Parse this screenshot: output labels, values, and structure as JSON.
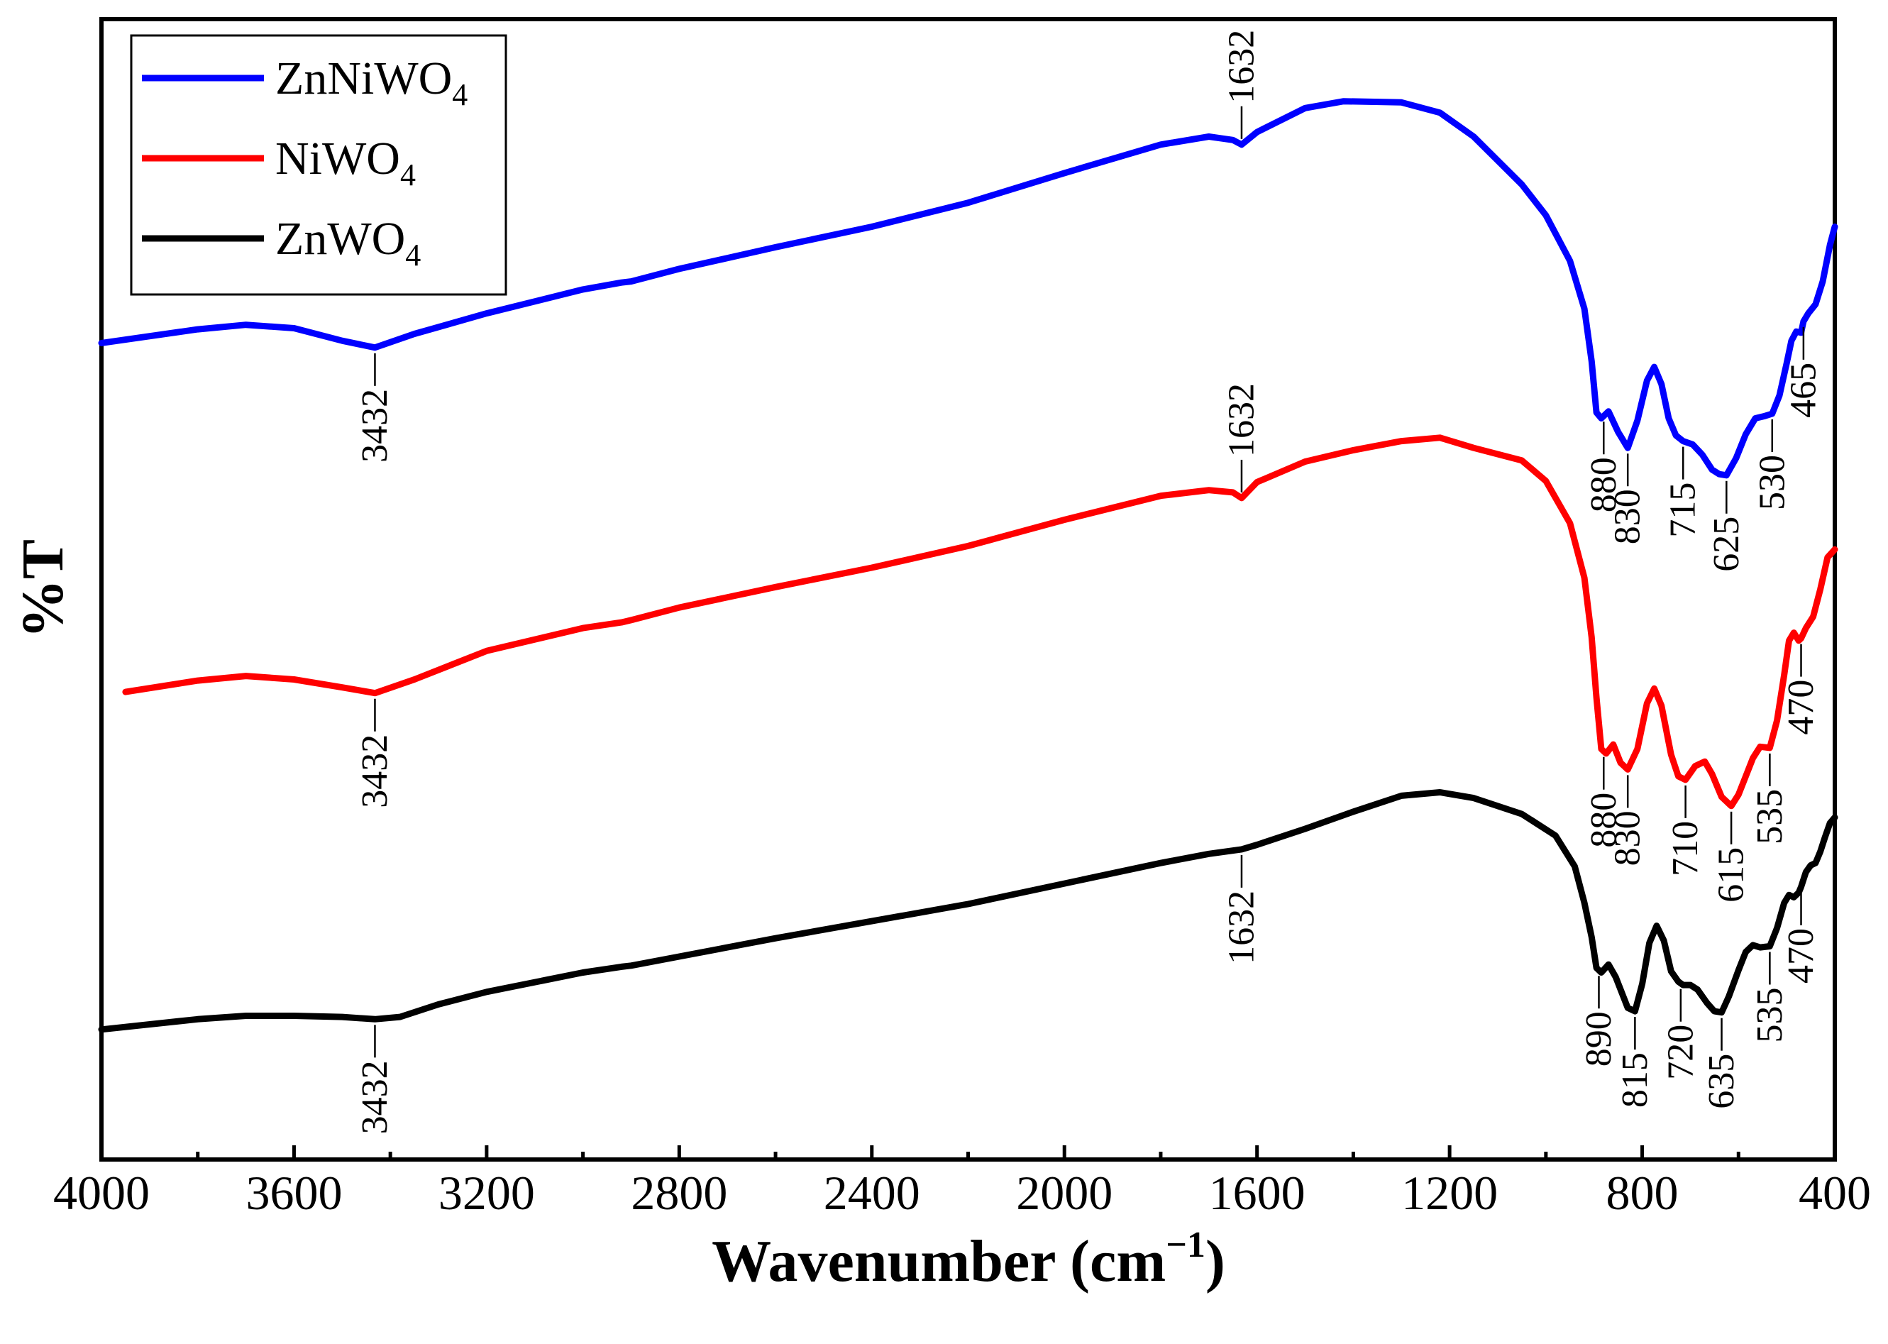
{
  "chart_data": {
    "type": "line",
    "title": "",
    "xlabel_main": "Wavenumber (cm",
    "xlabel_sup": "−1",
    "xlabel_close": ")",
    "ylabel": "%T",
    "xlim": [
      4000,
      400
    ],
    "x_reversed": true,
    "ylim": [
      0,
      100
    ],
    "x_ticks": [
      "4000",
      "3600",
      "3200",
      "2800",
      "2400",
      "2000",
      "1600",
      "1200",
      "800",
      "400"
    ],
    "x_tick_values": [
      4000,
      3600,
      3200,
      2800,
      2400,
      2000,
      1600,
      1200,
      800,
      400
    ],
    "y_ticks_shown": false,
    "legend_position": "top-left",
    "series": [
      {
        "name": "ZnNiWO",
        "sub": "4",
        "color": "#0000ff",
        "points": [
          [
            4000,
            71.6
          ],
          [
            3800,
            72.8
          ],
          [
            3700,
            73.2
          ],
          [
            3600,
            72.9
          ],
          [
            3500,
            71.8
          ],
          [
            3432,
            71.2
          ],
          [
            3350,
            72.4
          ],
          [
            3200,
            74.2
          ],
          [
            3000,
            76.3
          ],
          [
            2920,
            76.9
          ],
          [
            2900,
            77.0
          ],
          [
            2800,
            78.1
          ],
          [
            2600,
            80.0
          ],
          [
            2400,
            81.8
          ],
          [
            2200,
            83.9
          ],
          [
            2000,
            86.5
          ],
          [
            1800,
            89.0
          ],
          [
            1700,
            89.7
          ],
          [
            1650,
            89.4
          ],
          [
            1632,
            89.0
          ],
          [
            1600,
            90.1
          ],
          [
            1500,
            92.2
          ],
          [
            1420,
            92.8
          ],
          [
            1300,
            92.7
          ],
          [
            1220,
            91.8
          ],
          [
            1150,
            89.7
          ],
          [
            1100,
            87.6
          ],
          [
            1050,
            85.5
          ],
          [
            1000,
            82.8
          ],
          [
            950,
            78.8
          ],
          [
            920,
            74.6
          ],
          [
            905,
            70.0
          ],
          [
            895,
            65.5
          ],
          [
            885,
            65.0
          ],
          [
            870,
            65.6
          ],
          [
            850,
            63.8
          ],
          [
            830,
            62.4
          ],
          [
            810,
            64.8
          ],
          [
            790,
            68.3
          ],
          [
            775,
            69.5
          ],
          [
            760,
            68.0
          ],
          [
            745,
            65.0
          ],
          [
            730,
            63.5
          ],
          [
            715,
            63.0
          ],
          [
            695,
            62.7
          ],
          [
            675,
            61.8
          ],
          [
            655,
            60.5
          ],
          [
            640,
            60.1
          ],
          [
            625,
            60.0
          ],
          [
            605,
            61.5
          ],
          [
            585,
            63.6
          ],
          [
            565,
            65.0
          ],
          [
            545,
            65.2
          ],
          [
            530,
            65.4
          ],
          [
            515,
            67.0
          ],
          [
            500,
            69.8
          ],
          [
            490,
            71.8
          ],
          [
            480,
            72.6
          ],
          [
            470,
            72.5
          ],
          [
            465,
            73.5
          ],
          [
            455,
            74.2
          ],
          [
            440,
            75.0
          ],
          [
            425,
            77.0
          ],
          [
            410,
            80.2
          ],
          [
            400,
            81.8
          ]
        ]
      },
      {
        "name": "NiWO",
        "sub": "4",
        "color": "#ff0000",
        "points": [
          [
            3950,
            41.0
          ],
          [
            3800,
            42.0
          ],
          [
            3700,
            42.4
          ],
          [
            3600,
            42.1
          ],
          [
            3500,
            41.4
          ],
          [
            3432,
            40.9
          ],
          [
            3350,
            42.1
          ],
          [
            3200,
            44.6
          ],
          [
            3000,
            46.6
          ],
          [
            2920,
            47.1
          ],
          [
            2900,
            47.3
          ],
          [
            2800,
            48.4
          ],
          [
            2600,
            50.2
          ],
          [
            2400,
            51.9
          ],
          [
            2200,
            53.8
          ],
          [
            2000,
            56.1
          ],
          [
            1800,
            58.2
          ],
          [
            1700,
            58.7
          ],
          [
            1650,
            58.5
          ],
          [
            1632,
            58.0
          ],
          [
            1600,
            59.4
          ],
          [
            1500,
            61.2
          ],
          [
            1400,
            62.2
          ],
          [
            1300,
            63.0
          ],
          [
            1220,
            63.3
          ],
          [
            1150,
            62.4
          ],
          [
            1050,
            61.3
          ],
          [
            1000,
            59.5
          ],
          [
            950,
            55.8
          ],
          [
            920,
            51.0
          ],
          [
            905,
            45.8
          ],
          [
            895,
            40.5
          ],
          [
            885,
            36.0
          ],
          [
            875,
            35.6
          ],
          [
            860,
            36.4
          ],
          [
            845,
            34.8
          ],
          [
            830,
            34.2
          ],
          [
            810,
            36.0
          ],
          [
            790,
            40.0
          ],
          [
            775,
            41.3
          ],
          [
            760,
            39.8
          ],
          [
            740,
            35.5
          ],
          [
            725,
            33.6
          ],
          [
            710,
            33.3
          ],
          [
            690,
            34.5
          ],
          [
            670,
            34.9
          ],
          [
            655,
            33.8
          ],
          [
            635,
            31.8
          ],
          [
            615,
            31.0
          ],
          [
            600,
            32.0
          ],
          [
            585,
            33.6
          ],
          [
            570,
            35.2
          ],
          [
            555,
            36.2
          ],
          [
            535,
            36.1
          ],
          [
            520,
            38.5
          ],
          [
            505,
            42.5
          ],
          [
            495,
            45.5
          ],
          [
            485,
            46.2
          ],
          [
            475,
            45.5
          ],
          [
            470,
            45.7
          ],
          [
            460,
            46.6
          ],
          [
            445,
            47.6
          ],
          [
            430,
            50.0
          ],
          [
            415,
            52.8
          ],
          [
            400,
            53.5
          ]
        ]
      },
      {
        "name": "ZnWO",
        "sub": "4",
        "color": "#000000",
        "points": [
          [
            4000,
            11.4
          ],
          [
            3800,
            12.3
          ],
          [
            3700,
            12.6
          ],
          [
            3600,
            12.6
          ],
          [
            3500,
            12.5
          ],
          [
            3432,
            12.3
          ],
          [
            3380,
            12.5
          ],
          [
            3300,
            13.6
          ],
          [
            3200,
            14.7
          ],
          [
            3000,
            16.4
          ],
          [
            2920,
            16.9
          ],
          [
            2900,
            17.0
          ],
          [
            2800,
            17.8
          ],
          [
            2600,
            19.4
          ],
          [
            2400,
            20.9
          ],
          [
            2200,
            22.4
          ],
          [
            2000,
            24.2
          ],
          [
            1800,
            26.0
          ],
          [
            1700,
            26.8
          ],
          [
            1632,
            27.2
          ],
          [
            1600,
            27.6
          ],
          [
            1500,
            29.0
          ],
          [
            1400,
            30.5
          ],
          [
            1300,
            31.9
          ],
          [
            1220,
            32.2
          ],
          [
            1150,
            31.7
          ],
          [
            1050,
            30.3
          ],
          [
            980,
            28.4
          ],
          [
            940,
            25.7
          ],
          [
            920,
            22.5
          ],
          [
            905,
            19.5
          ],
          [
            895,
            16.8
          ],
          [
            885,
            16.4
          ],
          [
            870,
            17.1
          ],
          [
            855,
            16.0
          ],
          [
            830,
            13.3
          ],
          [
            815,
            13.0
          ],
          [
            800,
            15.4
          ],
          [
            785,
            19.0
          ],
          [
            770,
            20.5
          ],
          [
            755,
            19.2
          ],
          [
            740,
            16.5
          ],
          [
            725,
            15.6
          ],
          [
            715,
            15.3
          ],
          [
            700,
            15.3
          ],
          [
            685,
            14.9
          ],
          [
            665,
            13.7
          ],
          [
            650,
            13.0
          ],
          [
            635,
            12.9
          ],
          [
            620,
            14.3
          ],
          [
            600,
            16.6
          ],
          [
            585,
            18.2
          ],
          [
            570,
            18.8
          ],
          [
            555,
            18.6
          ],
          [
            535,
            18.7
          ],
          [
            520,
            20.3
          ],
          [
            505,
            22.5
          ],
          [
            495,
            23.2
          ],
          [
            485,
            23.0
          ],
          [
            475,
            23.4
          ],
          [
            470,
            23.9
          ],
          [
            460,
            25.2
          ],
          [
            450,
            25.8
          ],
          [
            440,
            26.0
          ],
          [
            430,
            27.0
          ],
          [
            420,
            28.3
          ],
          [
            410,
            29.5
          ],
          [
            400,
            30.0
          ]
        ]
      }
    ],
    "annotations": [
      {
        "label": "3432",
        "x": 3432,
        "series": 0
      },
      {
        "label": "1632",
        "x": 1632,
        "series": 0,
        "above": true
      },
      {
        "label": "880",
        "x": 880,
        "series": 0
      },
      {
        "label": "830",
        "x": 830,
        "series": 0
      },
      {
        "label": "715",
        "x": 715,
        "series": 0
      },
      {
        "label": "625",
        "x": 625,
        "series": 0
      },
      {
        "label": "530",
        "x": 530,
        "series": 0
      },
      {
        "label": "465",
        "x": 465,
        "series": 0
      },
      {
        "label": "3432",
        "x": 3432,
        "series": 1
      },
      {
        "label": "1632",
        "x": 1632,
        "series": 1,
        "above": true
      },
      {
        "label": "880",
        "x": 880,
        "series": 1
      },
      {
        "label": "830",
        "x": 830,
        "series": 1
      },
      {
        "label": "710",
        "x": 710,
        "series": 1
      },
      {
        "label": "615",
        "x": 615,
        "series": 1
      },
      {
        "label": "535",
        "x": 535,
        "series": 1
      },
      {
        "label": "470",
        "x": 470,
        "series": 1
      },
      {
        "label": "3432",
        "x": 3432,
        "series": 2
      },
      {
        "label": "1632",
        "x": 1632,
        "series": 2
      },
      {
        "label": "890",
        "x": 890,
        "series": 2
      },
      {
        "label": "815",
        "x": 815,
        "series": 2
      },
      {
        "label": "720",
        "x": 720,
        "series": 2
      },
      {
        "label": "635",
        "x": 635,
        "series": 2
      },
      {
        "label": "535",
        "x": 535,
        "series": 2
      },
      {
        "label": "470",
        "x": 470,
        "series": 2
      }
    ]
  }
}
